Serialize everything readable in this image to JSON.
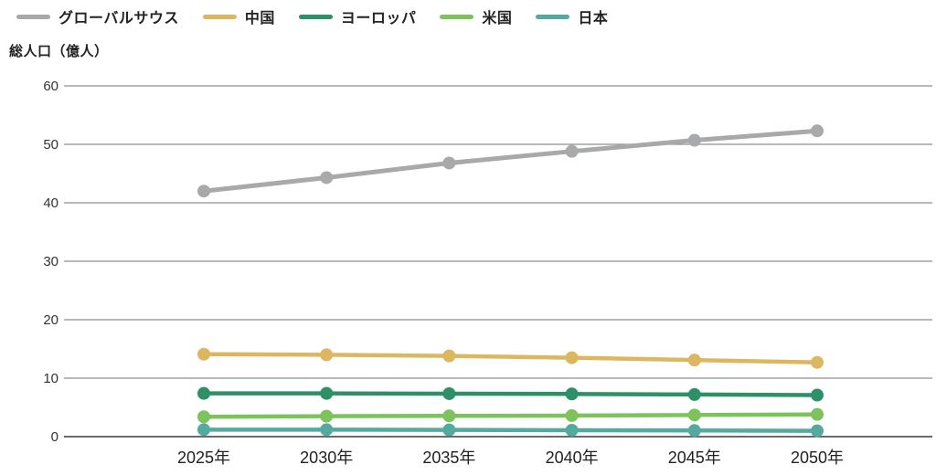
{
  "figure": {
    "background": "#ffffff",
    "text_color": "#222222",
    "tick_text_color": "#333333",
    "grid_color": "#8f8f8f",
    "axis_line_color": "#3a3a3a"
  },
  "chart_data": {
    "type": "line",
    "title": "",
    "ylabel": "総人口（億人）",
    "xlabel": "",
    "categories": [
      "2025年",
      "2030年",
      "2035年",
      "2040年",
      "2045年",
      "2050年"
    ],
    "ylim": [
      0,
      60
    ],
    "yticks": [
      0,
      10,
      20,
      30,
      40,
      50,
      60
    ],
    "grid": "horizontal",
    "legend_position": "top-left",
    "series": [
      {
        "name": "グローバルサウス",
        "color": "#a7a9aa",
        "values": [
          42.0,
          44.3,
          46.8,
          48.8,
          50.7,
          52.3
        ]
      },
      {
        "name": "中国",
        "color": "#ddb75f",
        "values": [
          14.1,
          14.0,
          13.8,
          13.5,
          13.1,
          12.7
        ]
      },
      {
        "name": "ヨーロッパ",
        "color": "#2c9166",
        "values": [
          7.4,
          7.4,
          7.35,
          7.3,
          7.2,
          7.1
        ]
      },
      {
        "name": "米国",
        "color": "#7cc35c",
        "values": [
          3.4,
          3.5,
          3.55,
          3.6,
          3.7,
          3.8
        ]
      },
      {
        "name": "日本",
        "color": "#52ab9e",
        "values": [
          1.2,
          1.2,
          1.15,
          1.1,
          1.05,
          1.0
        ]
      }
    ]
  }
}
